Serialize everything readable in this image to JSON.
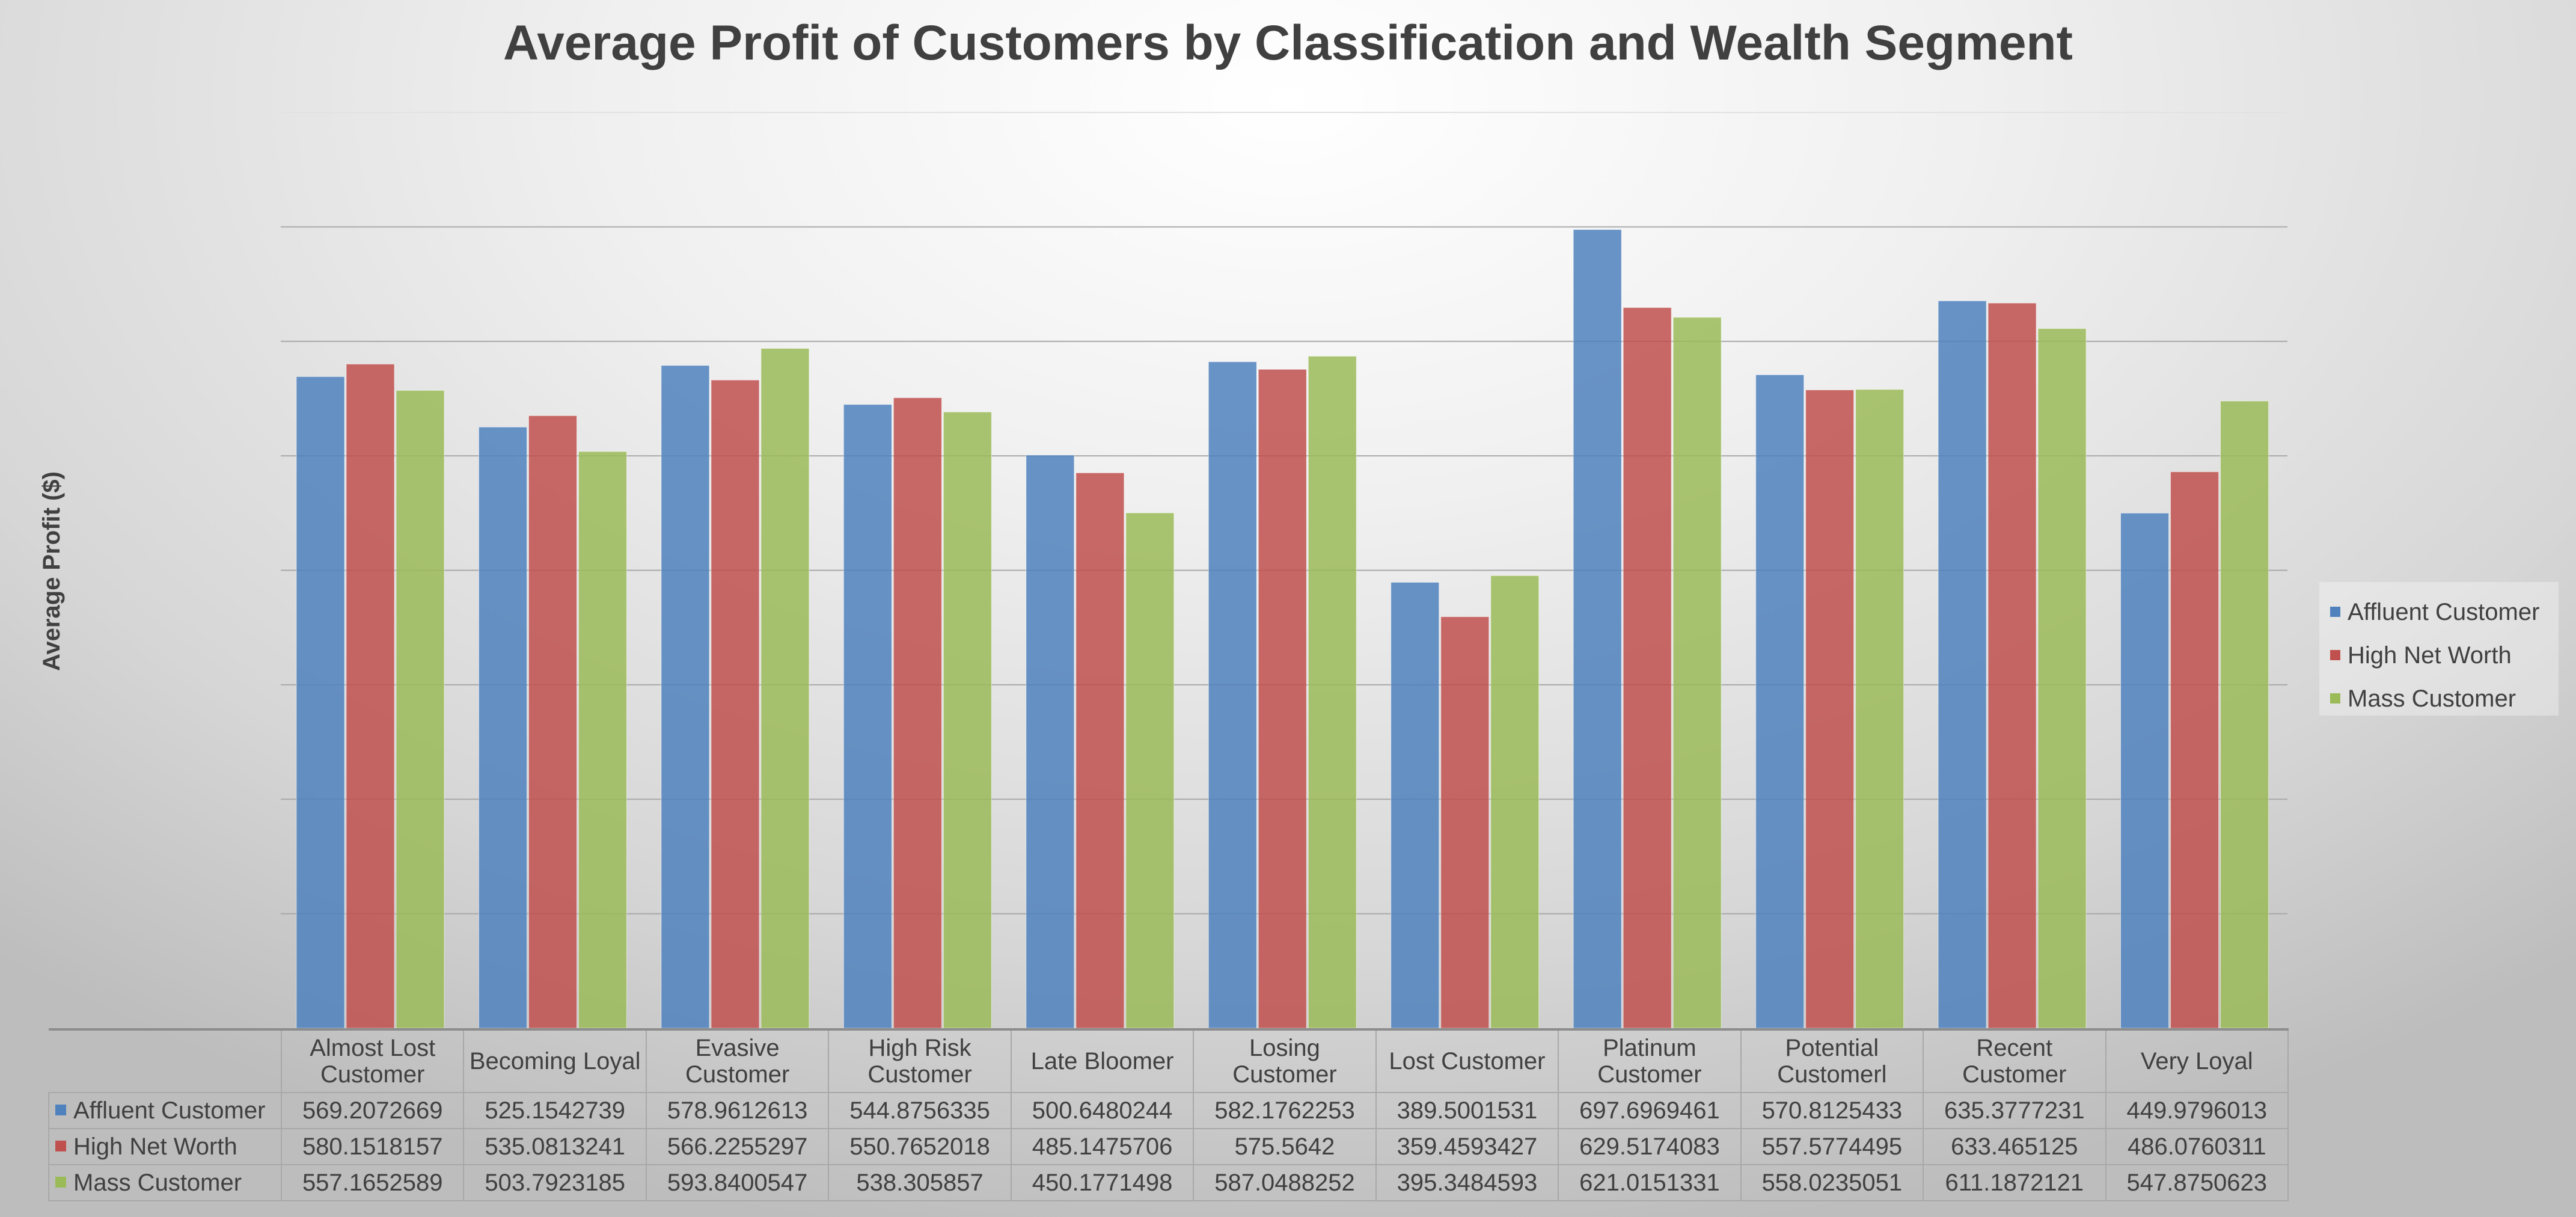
{
  "chart_data": {
    "type": "bar",
    "title": "Average Profit of Customers by Classification and Wealth Segment",
    "xlabel": "",
    "ylabel": "Average Profit ($)",
    "ylim": [
      0,
      800
    ],
    "grid": true,
    "legend_position": "right",
    "categories": [
      "Almost Lost Customer",
      "Becoming Loyal",
      "Evasive Customer",
      "High Risk Customer",
      "Late Bloomer",
      "Losing Customer",
      "Lost Customer",
      "Platinum Customer",
      "Potential Customerl",
      "Recent Customer",
      "Very Loyal"
    ],
    "series": [
      {
        "name": "Affluent Customer",
        "color": "#4f81bd",
        "values": [
          569.2072669,
          525.1542739,
          578.9612613,
          544.8756335,
          500.6480244,
          582.1762253,
          389.5001531,
          697.6969461,
          570.8125433,
          635.3777231,
          449.9796013
        ],
        "labels": [
          "569.2072669",
          "525.1542739",
          "578.9612613",
          "544.8756335",
          "500.6480244",
          "582.1762253",
          "389.5001531",
          "697.6969461",
          "570.8125433",
          "635.3777231",
          "449.9796013"
        ]
      },
      {
        "name": "High Net Worth",
        "color": "#c0504d",
        "values": [
          580.1518157,
          535.0813241,
          566.2255297,
          550.7652018,
          485.1475706,
          575.5642,
          359.4593427,
          629.5174083,
          557.5774495,
          633.465125,
          486.0760311
        ],
        "labels": [
          "580.1518157",
          "535.0813241",
          "566.2255297",
          "550.7652018",
          "485.1475706",
          "575.5642",
          "359.4593427",
          "629.5174083",
          "557.5774495",
          "633.465125",
          "486.0760311"
        ]
      },
      {
        "name": "Mass Customer",
        "color": "#9bbb59",
        "values": [
          557.1652589,
          503.7923185,
          593.8400547,
          538.305857,
          450.1771498,
          587.0488252,
          395.3484593,
          621.0151331,
          558.0235051,
          611.1872121,
          547.8750623
        ],
        "labels": [
          "557.1652589",
          "503.7923185",
          "593.8400547",
          "538.305857",
          "450.1771498",
          "587.0488252",
          "395.3484593",
          "621.0151331",
          "558.0235051",
          "611.1872121",
          "547.8750623"
        ]
      }
    ]
  }
}
